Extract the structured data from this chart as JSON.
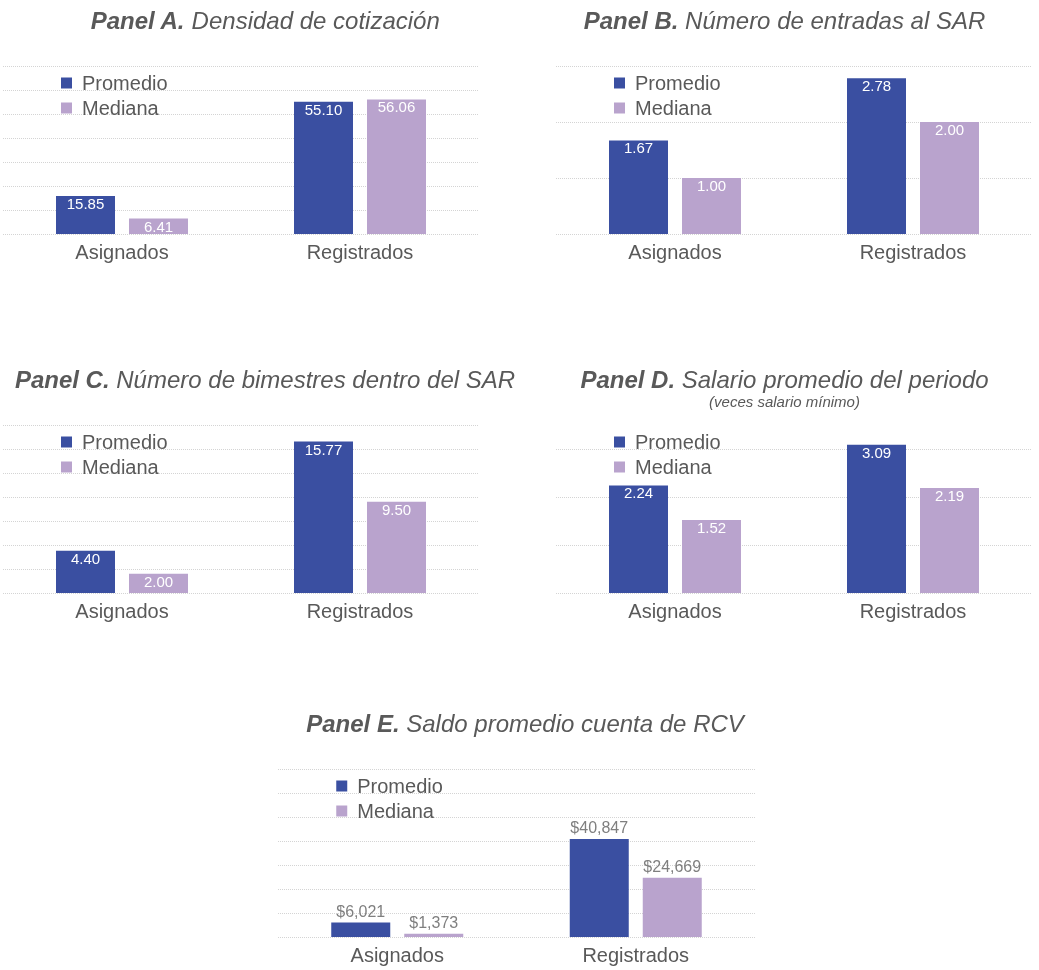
{
  "chart_data": [
    {
      "type": "bar",
      "title": "Panel A. Densidad de cotización",
      "categories": [
        "Asignados",
        "Registrados"
      ],
      "series": [
        {
          "name": "Promedio",
          "color": "#3a4fa1",
          "values": [
            15.85,
            55.1
          ],
          "value_labels": [
            "15.85",
            "55.10"
          ]
        },
        {
          "name": "Mediana",
          "color": "#b9a3cd",
          "values": [
            6.41,
            56.06
          ],
          "value_labels": [
            "6.41",
            "56.06"
          ]
        }
      ],
      "ylim": [
        0,
        70
      ],
      "yticks": [
        {
          "value": 0,
          "label": null
        },
        {
          "value": 10,
          "label": null
        },
        {
          "value": 20,
          "label": null
        },
        {
          "value": 30,
          "label": null
        },
        {
          "value": 40,
          "label": null
        },
        {
          "value": 50,
          "label": null
        },
        {
          "value": 60,
          "label": null
        },
        {
          "value": 70,
          "label": null
        }
      ],
      "tick_labels": "x",
      "grid": "y",
      "legend": "top left"
    },
    {
      "type": "bar",
      "title": "Panel B. Número de entradas al SAR",
      "categories": [
        "Asignados",
        "Registrados"
      ],
      "series": [
        {
          "name": "Promedio",
          "color": "#3a4fa1",
          "values": [
            1.67,
            2.78
          ],
          "value_labels": [
            "1.67",
            "2.78"
          ]
        },
        {
          "name": "Mediana",
          "color": "#b9a3cd",
          "values": [
            1.0,
            2.0
          ],
          "value_labels": [
            "1.00",
            "2.00"
          ]
        }
      ],
      "ylim": [
        0,
        3
      ],
      "yticks": [
        {
          "value": 0,
          "label": null
        },
        {
          "value": 1,
          "label": null
        },
        {
          "value": 2,
          "label": null
        },
        {
          "value": 3,
          "label": null
        }
      ],
      "tick_labels": "x",
      "grid": "y",
      "legend": "top left"
    },
    {
      "type": "bar",
      "title": "Panel C. Número de bimestres dentro del SAR",
      "categories": [
        "Asignados",
        "Registrados"
      ],
      "series": [
        {
          "name": "Promedio",
          "color": "#3a4fa1",
          "values": [
            4.4,
            15.77
          ],
          "value_labels": [
            "4.40",
            "15.77"
          ]
        },
        {
          "name": "Mediana",
          "color": "#b9a3cd",
          "values": [
            2.0,
            9.5
          ],
          "value_labels": [
            "2.00",
            "9.50"
          ]
        }
      ],
      "ylim": [
        0,
        17.5
      ],
      "yticks": [
        {
          "value": 0,
          "label": null
        },
        {
          "value": 2.5,
          "label": null
        },
        {
          "value": 5,
          "label": null
        },
        {
          "value": 7.5,
          "label": null
        },
        {
          "value": 10,
          "label": null
        },
        {
          "value": 12.5,
          "label": null
        },
        {
          "value": 15,
          "label": null
        },
        {
          "value": 17.5,
          "label": null
        }
      ],
      "tick_labels": "x",
      "grid": "y",
      "legend": "top left"
    },
    {
      "type": "bar",
      "title": "Panel D. Salario promedio del periodo",
      "subtitle": "(veces salario mínimo)",
      "categories": [
        "Asignados",
        "Registrados"
      ],
      "series": [
        {
          "name": "Promedio",
          "color": "#3a4fa1",
          "values": [
            2.24,
            3.09
          ],
          "value_labels": [
            "2.24",
            "3.09"
          ]
        },
        {
          "name": "Mediana",
          "color": "#b9a3cd",
          "values": [
            1.52,
            2.19
          ],
          "value_labels": [
            "1.52",
            "2.19"
          ]
        }
      ],
      "yticks": [
        {
          "value": 0,
          "label": null
        },
        {
          "value": 1,
          "label": null
        },
        {
          "value": 2,
          "label": null
        },
        {
          "value": 3,
          "label": null
        }
      ],
      "tick_labels": "x",
      "grid": "y",
      "legend": "top left"
    },
    {
      "type": "bar",
      "title": "Panel E. Saldo promedio cuenta de RCV",
      "categories": [
        "Asignados",
        "Registrados"
      ],
      "series": [
        {
          "name": "Promedio",
          "color": "#3a4fa1",
          "values": [
            6021,
            40847
          ],
          "value_labels": [
            "$6,021",
            "$40,847"
          ]
        },
        {
          "name": "Mediana",
          "color": "#b9a3cd",
          "values": [
            1373,
            24669
          ],
          "value_labels": [
            "$1,373",
            "$24,669"
          ]
        }
      ],
      "ylim": [
        0,
        70000
      ],
      "yticks": [
        {
          "value": 0,
          "label": null
        },
        {
          "value": 10000,
          "label": null
        },
        {
          "value": 20000,
          "label": null
        },
        {
          "value": 30000,
          "label": null
        },
        {
          "value": 40000,
          "label": null
        },
        {
          "value": 50000,
          "label": null
        },
        {
          "value": 60000,
          "label": null
        },
        {
          "value": 70000,
          "label": null
        }
      ],
      "tick_labels": "x",
      "grid": "y",
      "legend": "top left"
    }
  ]
}
